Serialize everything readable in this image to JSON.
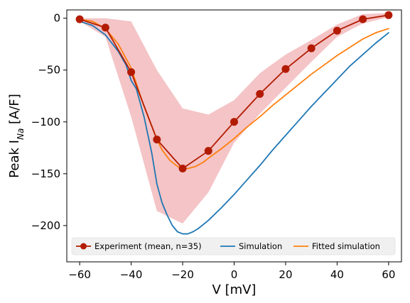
{
  "chart_data": {
    "type": "line",
    "xlabel": "V [mV]",
    "ylabel": {
      "prefix": "Peak I",
      "subscript": "Na",
      "suffix": " [A/F]"
    },
    "xlim": [
      -65,
      65
    ],
    "ylim": [
      -235,
      8
    ],
    "xticks": [
      -60,
      -40,
      -20,
      0,
      20,
      40,
      60
    ],
    "yticks": [
      0,
      -50,
      -100,
      -150,
      -200
    ],
    "grid": false,
    "legend_position": "bottom",
    "series": [
      {
        "name": "Experiment (mean, n=35)",
        "kind": "markers-line",
        "color": "#b31b00",
        "x": [
          -60,
          -50,
          -40,
          -30,
          -20,
          -10,
          0,
          10,
          20,
          30,
          40,
          50,
          60
        ],
        "y": [
          -1,
          -9,
          -52,
          -117,
          -145,
          -128,
          -100,
          -73,
          -49,
          -29,
          -12,
          -1,
          3
        ]
      },
      {
        "name": "Simulation",
        "kind": "line",
        "color": "#1f77b4",
        "x": [
          -60,
          -55,
          -50,
          -45,
          -42,
          -40,
          -38,
          -35,
          -32,
          -30,
          -28,
          -26,
          -24,
          -22,
          -20,
          -18,
          -16,
          -14,
          -12,
          -10,
          -5,
          0,
          5,
          10,
          15,
          20,
          25,
          30,
          35,
          40,
          45,
          50,
          55,
          60
        ],
        "y": [
          -3,
          -7,
          -16,
          -32,
          -45,
          -60,
          -68,
          -95,
          -130,
          -160,
          -178,
          -190,
          -200,
          -206,
          -208,
          -208,
          -206,
          -203,
          -199,
          -195,
          -183,
          -170,
          -156,
          -142,
          -127,
          -113,
          -99,
          -85,
          -72,
          -59,
          -46,
          -35,
          -24,
          -14
        ]
      },
      {
        "name": "Fitted simulation",
        "kind": "line",
        "color": "#ff7f0e",
        "x": [
          -60,
          -55,
          -50,
          -45,
          -40,
          -35,
          -30,
          -28,
          -25,
          -22,
          -20,
          -18,
          -15,
          -12,
          -10,
          -5,
          0,
          5,
          10,
          15,
          20,
          25,
          30,
          35,
          40,
          45,
          50,
          55,
          60
        ],
        "y": [
          -1,
          -3,
          -10,
          -25,
          -48,
          -85,
          -117,
          -127,
          -137,
          -143,
          -145,
          -145,
          -143,
          -139,
          -135,
          -126,
          -116,
          -105,
          -95,
          -84,
          -74,
          -64,
          -54,
          -45,
          -36,
          -28,
          -20,
          -14,
          -10
        ]
      }
    ],
    "band": {
      "color": "#f4c4c6",
      "x": [
        -60,
        -50,
        -40,
        -30,
        -20,
        -10,
        0,
        10,
        20,
        30,
        40,
        50,
        60
      ],
      "upper": [
        0,
        0,
        -3,
        -50,
        -87,
        -93,
        -79,
        -53,
        -35,
        -21,
        -6,
        4,
        5
      ],
      "lower": [
        -3,
        -18,
        -95,
        -186,
        -198,
        -168,
        -120,
        -92,
        -67,
        -42,
        -18,
        -5,
        1
      ]
    }
  }
}
